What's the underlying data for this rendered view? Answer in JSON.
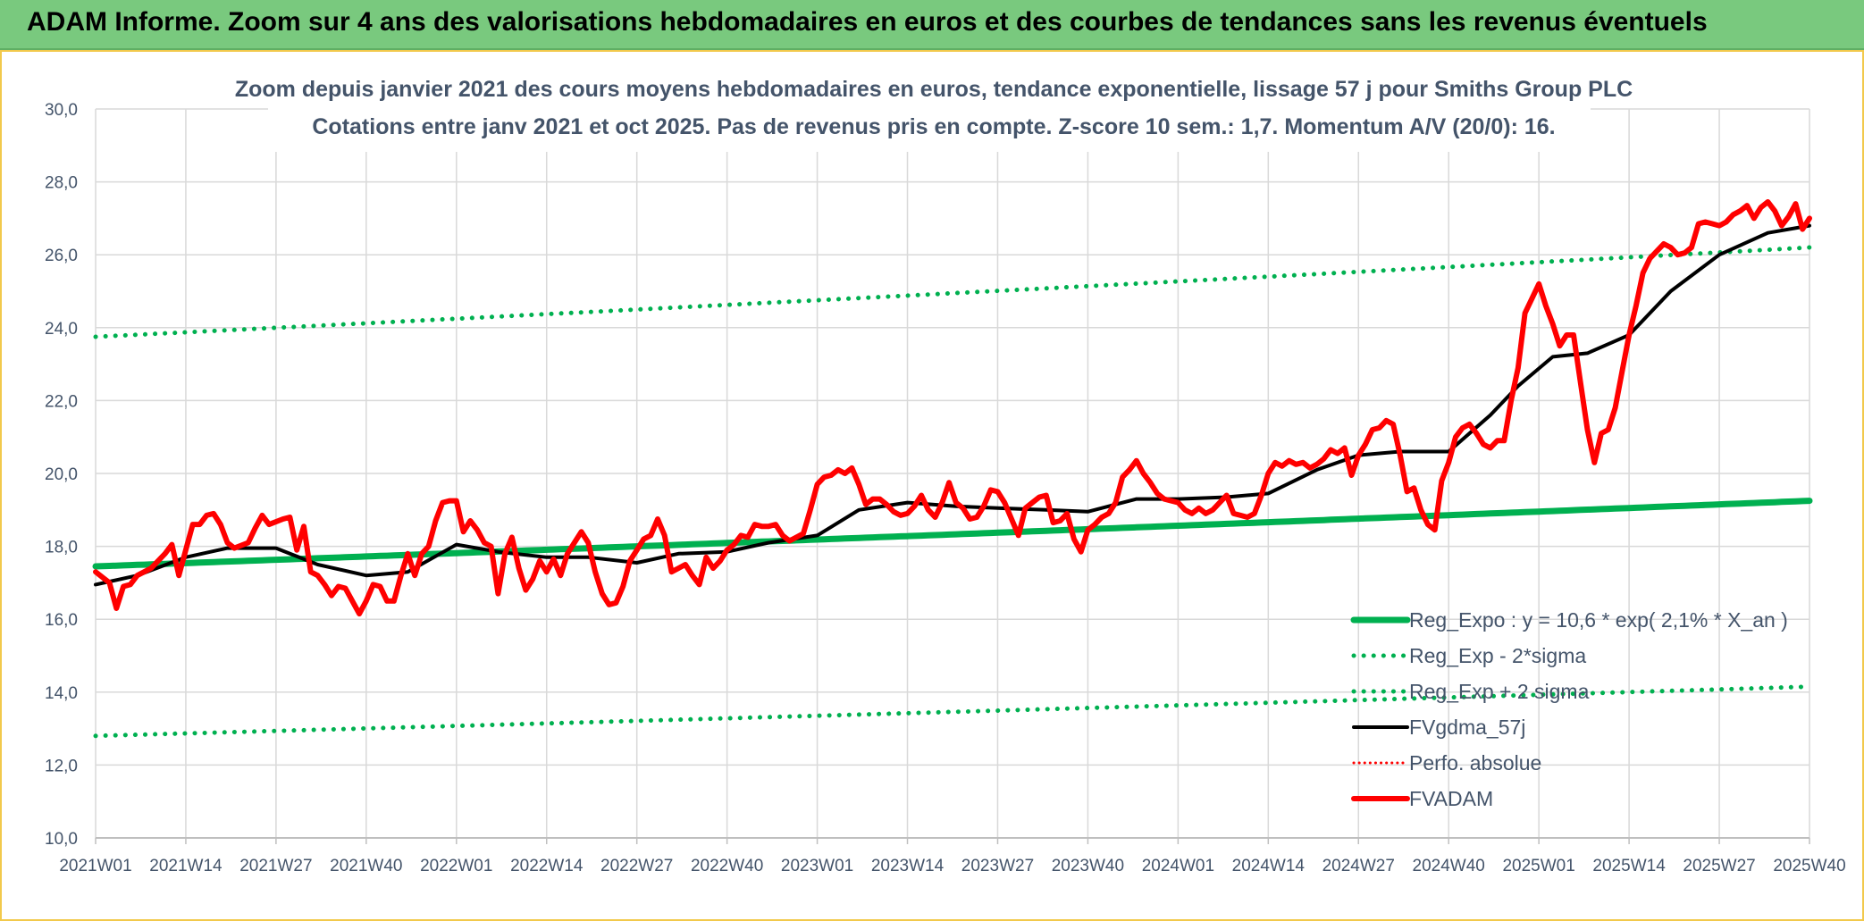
{
  "header": {
    "title": "ADAM Informe. Zoom sur 4 ans des valorisations hebdomadaires en euros et des courbes de tendances sans les revenus éventuels"
  },
  "colors": {
    "banner": "#79c97e",
    "regression": "#00b050",
    "sigma": "#00b050",
    "smooth": "#000000",
    "price": "#ff0000",
    "text": "#44546a",
    "grid": "#d9d9d9"
  },
  "chart_data": {
    "type": "line",
    "title": "Zoom depuis janvier 2021 des cours moyens hebdomadaires en euros, tendance exponentielle, lissage 57 j pour Smiths Group PLC",
    "subtitle": "Cotations entre janv 2021 et oct 2025. Pas de revenus pris en compte. Z-score 10 sem.: 1,7. Momentum A/V (20/0): 16.",
    "xlabel": "",
    "ylabel": "",
    "ylim": [
      10,
      30
    ],
    "yticks": [
      "30,0",
      "28,0",
      "26,0",
      "24,0",
      "22,0",
      "20,0",
      "18,0",
      "16,0",
      "14,0",
      "12,0",
      "10,0"
    ],
    "xticks": [
      "2021W01",
      "2021W14",
      "2021W27",
      "2021W40",
      "2022W01",
      "2022W14",
      "2022W27",
      "2022W40",
      "2023W01",
      "2023W14",
      "2023W27",
      "2023W40",
      "2024W01",
      "2024W14",
      "2024W27",
      "2024W40",
      "2025W01",
      "2025W14",
      "2025W27",
      "2025W40"
    ],
    "week_range": [
      0,
      247
    ],
    "grid": true,
    "legend_position": "bottom-right",
    "series": [
      {
        "name": "Reg_Expo : y = 10,6 * exp( 2,1% *  X_an )",
        "style": "thick-solid",
        "start": 17.45,
        "end": 19.25
      },
      {
        "name": "Reg_Exp - 2*sigma",
        "style": "dotted",
        "start": 12.8,
        "end": 14.15
      },
      {
        "name": "Reg_Exp + 2 sigma",
        "style": "dotted",
        "start": 23.75,
        "end": 26.2
      },
      {
        "name": "FVgdma_57j",
        "style": "solid",
        "points": [
          [
            0,
            16.95
          ],
          [
            6,
            17.2
          ],
          [
            13,
            17.7
          ],
          [
            19,
            17.95
          ],
          [
            26,
            17.95
          ],
          [
            32,
            17.5
          ],
          [
            39,
            17.2
          ],
          [
            45,
            17.3
          ],
          [
            52,
            18.05
          ],
          [
            58,
            17.85
          ],
          [
            65,
            17.7
          ],
          [
            71,
            17.7
          ],
          [
            78,
            17.55
          ],
          [
            84,
            17.8
          ],
          [
            91,
            17.85
          ],
          [
            97,
            18.1
          ],
          [
            104,
            18.3
          ],
          [
            110,
            19.0
          ],
          [
            117,
            19.2
          ],
          [
            124,
            19.1
          ],
          [
            130,
            19.05
          ],
          [
            137,
            19.0
          ],
          [
            143,
            18.95
          ],
          [
            150,
            19.3
          ],
          [
            156,
            19.3
          ],
          [
            163,
            19.35
          ],
          [
            169,
            19.45
          ],
          [
            176,
            20.1
          ],
          [
            182,
            20.5
          ],
          [
            188,
            20.6
          ],
          [
            195,
            20.6
          ],
          [
            201,
            21.6
          ],
          [
            205,
            22.4
          ],
          [
            210,
            23.2
          ],
          [
            215,
            23.3
          ],
          [
            221,
            23.8
          ],
          [
            227,
            25.0
          ],
          [
            234,
            26.0
          ],
          [
            241,
            26.6
          ],
          [
            247,
            26.8
          ]
        ]
      },
      {
        "name": "Perfo. absolue",
        "style": "dotted-red",
        "points": []
      },
      {
        "name": "FVADAM",
        "style": "thick-solid-red",
        "points": [
          [
            0,
            17.3
          ],
          [
            2,
            17.0
          ],
          [
            3,
            16.3
          ],
          [
            4,
            16.9
          ],
          [
            5,
            16.95
          ],
          [
            6,
            17.2
          ],
          [
            8,
            17.4
          ],
          [
            10,
            17.8
          ],
          [
            11,
            18.05
          ],
          [
            12,
            17.2
          ],
          [
            13,
            17.9
          ],
          [
            14,
            18.6
          ],
          [
            15,
            18.6
          ],
          [
            16,
            18.85
          ],
          [
            17,
            18.9
          ],
          [
            18,
            18.6
          ],
          [
            19,
            18.1
          ],
          [
            20,
            17.95
          ],
          [
            22,
            18.1
          ],
          [
            23,
            18.5
          ],
          [
            24,
            18.85
          ],
          [
            25,
            18.6
          ],
          [
            27,
            18.75
          ],
          [
            28,
            18.8
          ],
          [
            29,
            17.9
          ],
          [
            30,
            18.55
          ],
          [
            31,
            17.3
          ],
          [
            32,
            17.2
          ],
          [
            33,
            16.95
          ],
          [
            34,
            16.65
          ],
          [
            35,
            16.9
          ],
          [
            36,
            16.85
          ],
          [
            37,
            16.5
          ],
          [
            38,
            16.15
          ],
          [
            39,
            16.5
          ],
          [
            40,
            16.95
          ],
          [
            41,
            16.9
          ],
          [
            42,
            16.5
          ],
          [
            43,
            16.5
          ],
          [
            44,
            17.2
          ],
          [
            45,
            17.8
          ],
          [
            46,
            17.2
          ],
          [
            47,
            17.8
          ],
          [
            48,
            18.0
          ],
          [
            49,
            18.7
          ],
          [
            50,
            19.2
          ],
          [
            51,
            19.25
          ],
          [
            52,
            19.25
          ],
          [
            53,
            18.4
          ],
          [
            54,
            18.7
          ],
          [
            55,
            18.45
          ],
          [
            56,
            18.1
          ],
          [
            57,
            18.0
          ],
          [
            58,
            16.7
          ],
          [
            59,
            17.8
          ],
          [
            60,
            18.25
          ],
          [
            61,
            17.4
          ],
          [
            62,
            16.8
          ],
          [
            63,
            17.1
          ],
          [
            64,
            17.6
          ],
          [
            65,
            17.3
          ],
          [
            66,
            17.65
          ],
          [
            67,
            17.2
          ],
          [
            68,
            17.8
          ],
          [
            69,
            18.1
          ],
          [
            70,
            18.4
          ],
          [
            71,
            18.1
          ],
          [
            72,
            17.3
          ],
          [
            73,
            16.7
          ],
          [
            74,
            16.4
          ],
          [
            75,
            16.45
          ],
          [
            76,
            16.9
          ],
          [
            77,
            17.6
          ],
          [
            78,
            17.9
          ],
          [
            79,
            18.2
          ],
          [
            80,
            18.3
          ],
          [
            81,
            18.75
          ],
          [
            82,
            18.3
          ],
          [
            83,
            17.3
          ],
          [
            84,
            17.4
          ],
          [
            85,
            17.5
          ],
          [
            86,
            17.2
          ],
          [
            87,
            16.95
          ],
          [
            88,
            17.7
          ],
          [
            89,
            17.4
          ],
          [
            90,
            17.6
          ],
          [
            91,
            17.9
          ],
          [
            92,
            18.05
          ],
          [
            93,
            18.3
          ],
          [
            94,
            18.25
          ],
          [
            95,
            18.6
          ],
          [
            96,
            18.55
          ],
          [
            97,
            18.55
          ],
          [
            98,
            18.6
          ],
          [
            99,
            18.3
          ],
          [
            100,
            18.15
          ],
          [
            101,
            18.25
          ],
          [
            102,
            18.35
          ],
          [
            103,
            19.0
          ],
          [
            104,
            19.7
          ],
          [
            105,
            19.9
          ],
          [
            106,
            19.95
          ],
          [
            107,
            20.1
          ],
          [
            108,
            20.0
          ],
          [
            109,
            20.15
          ],
          [
            110,
            19.7
          ],
          [
            111,
            19.15
          ],
          [
            112,
            19.3
          ],
          [
            113,
            19.3
          ],
          [
            114,
            19.15
          ],
          [
            115,
            18.95
          ],
          [
            116,
            18.85
          ],
          [
            117,
            18.9
          ],
          [
            118,
            19.1
          ],
          [
            119,
            19.4
          ],
          [
            120,
            19.0
          ],
          [
            121,
            18.8
          ],
          [
            122,
            19.2
          ],
          [
            123,
            19.75
          ],
          [
            124,
            19.2
          ],
          [
            125,
            19.05
          ],
          [
            126,
            18.75
          ],
          [
            127,
            18.8
          ],
          [
            128,
            19.1
          ],
          [
            129,
            19.55
          ],
          [
            130,
            19.5
          ],
          [
            131,
            19.2
          ],
          [
            132,
            18.75
          ],
          [
            133,
            18.3
          ],
          [
            134,
            19.05
          ],
          [
            135,
            19.2
          ],
          [
            136,
            19.35
          ],
          [
            137,
            19.4
          ],
          [
            138,
            18.65
          ],
          [
            139,
            18.7
          ],
          [
            140,
            18.9
          ],
          [
            141,
            18.2
          ],
          [
            142,
            17.85
          ],
          [
            143,
            18.45
          ],
          [
            144,
            18.6
          ],
          [
            145,
            18.8
          ],
          [
            146,
            18.9
          ],
          [
            147,
            19.2
          ],
          [
            148,
            19.9
          ],
          [
            149,
            20.1
          ],
          [
            150,
            20.35
          ],
          [
            151,
            20.0
          ],
          [
            152,
            19.75
          ],
          [
            153,
            19.45
          ],
          [
            154,
            19.3
          ],
          [
            155,
            19.25
          ],
          [
            156,
            19.2
          ],
          [
            157,
            19.0
          ],
          [
            158,
            18.9
          ],
          [
            159,
            19.05
          ],
          [
            160,
            18.9
          ],
          [
            161,
            19.0
          ],
          [
            162,
            19.2
          ],
          [
            163,
            19.4
          ],
          [
            164,
            18.9
          ],
          [
            165,
            18.85
          ],
          [
            166,
            18.8
          ],
          [
            167,
            18.9
          ],
          [
            168,
            19.4
          ],
          [
            169,
            20.0
          ],
          [
            170,
            20.3
          ],
          [
            171,
            20.2
          ],
          [
            172,
            20.35
          ],
          [
            173,
            20.25
          ],
          [
            174,
            20.3
          ],
          [
            175,
            20.15
          ],
          [
            176,
            20.25
          ],
          [
            177,
            20.4
          ],
          [
            178,
            20.65
          ],
          [
            179,
            20.55
          ],
          [
            180,
            20.7
          ],
          [
            181,
            19.95
          ],
          [
            182,
            20.5
          ],
          [
            183,
            20.8
          ],
          [
            184,
            21.2
          ],
          [
            185,
            21.25
          ],
          [
            186,
            21.45
          ],
          [
            187,
            21.35
          ],
          [
            188,
            20.5
          ],
          [
            189,
            19.5
          ],
          [
            190,
            19.6
          ],
          [
            191,
            19.0
          ],
          [
            192,
            18.6
          ],
          [
            193,
            18.45
          ],
          [
            194,
            19.8
          ],
          [
            195,
            20.3
          ],
          [
            196,
            21.0
          ],
          [
            197,
            21.25
          ],
          [
            198,
            21.35
          ],
          [
            199,
            21.1
          ],
          [
            200,
            20.8
          ],
          [
            201,
            20.7
          ],
          [
            202,
            20.9
          ],
          [
            203,
            20.9
          ],
          [
            204,
            22.0
          ],
          [
            205,
            22.9
          ],
          [
            206,
            24.4
          ],
          [
            207,
            24.8
          ],
          [
            208,
            25.2
          ],
          [
            209,
            24.6
          ],
          [
            210,
            24.1
          ],
          [
            211,
            23.5
          ],
          [
            212,
            23.8
          ],
          [
            213,
            23.8
          ],
          [
            214,
            22.5
          ],
          [
            215,
            21.2
          ],
          [
            216,
            20.3
          ],
          [
            217,
            21.1
          ],
          [
            218,
            21.2
          ],
          [
            219,
            21.8
          ],
          [
            220,
            22.8
          ],
          [
            221,
            23.8
          ],
          [
            222,
            24.6
          ],
          [
            223,
            25.5
          ],
          [
            224,
            25.9
          ],
          [
            225,
            26.1
          ],
          [
            226,
            26.3
          ],
          [
            227,
            26.2
          ],
          [
            228,
            26.0
          ],
          [
            229,
            26.05
          ],
          [
            230,
            26.2
          ],
          [
            231,
            26.85
          ],
          [
            232,
            26.9
          ],
          [
            233,
            26.85
          ],
          [
            234,
            26.8
          ],
          [
            235,
            26.9
          ],
          [
            236,
            27.1
          ],
          [
            237,
            27.2
          ],
          [
            238,
            27.35
          ],
          [
            239,
            27.0
          ],
          [
            240,
            27.3
          ],
          [
            241,
            27.45
          ],
          [
            242,
            27.2
          ],
          [
            243,
            26.8
          ],
          [
            244,
            27.05
          ],
          [
            245,
            27.4
          ],
          [
            246,
            26.7
          ],
          [
            247,
            27.0
          ]
        ]
      }
    ]
  }
}
